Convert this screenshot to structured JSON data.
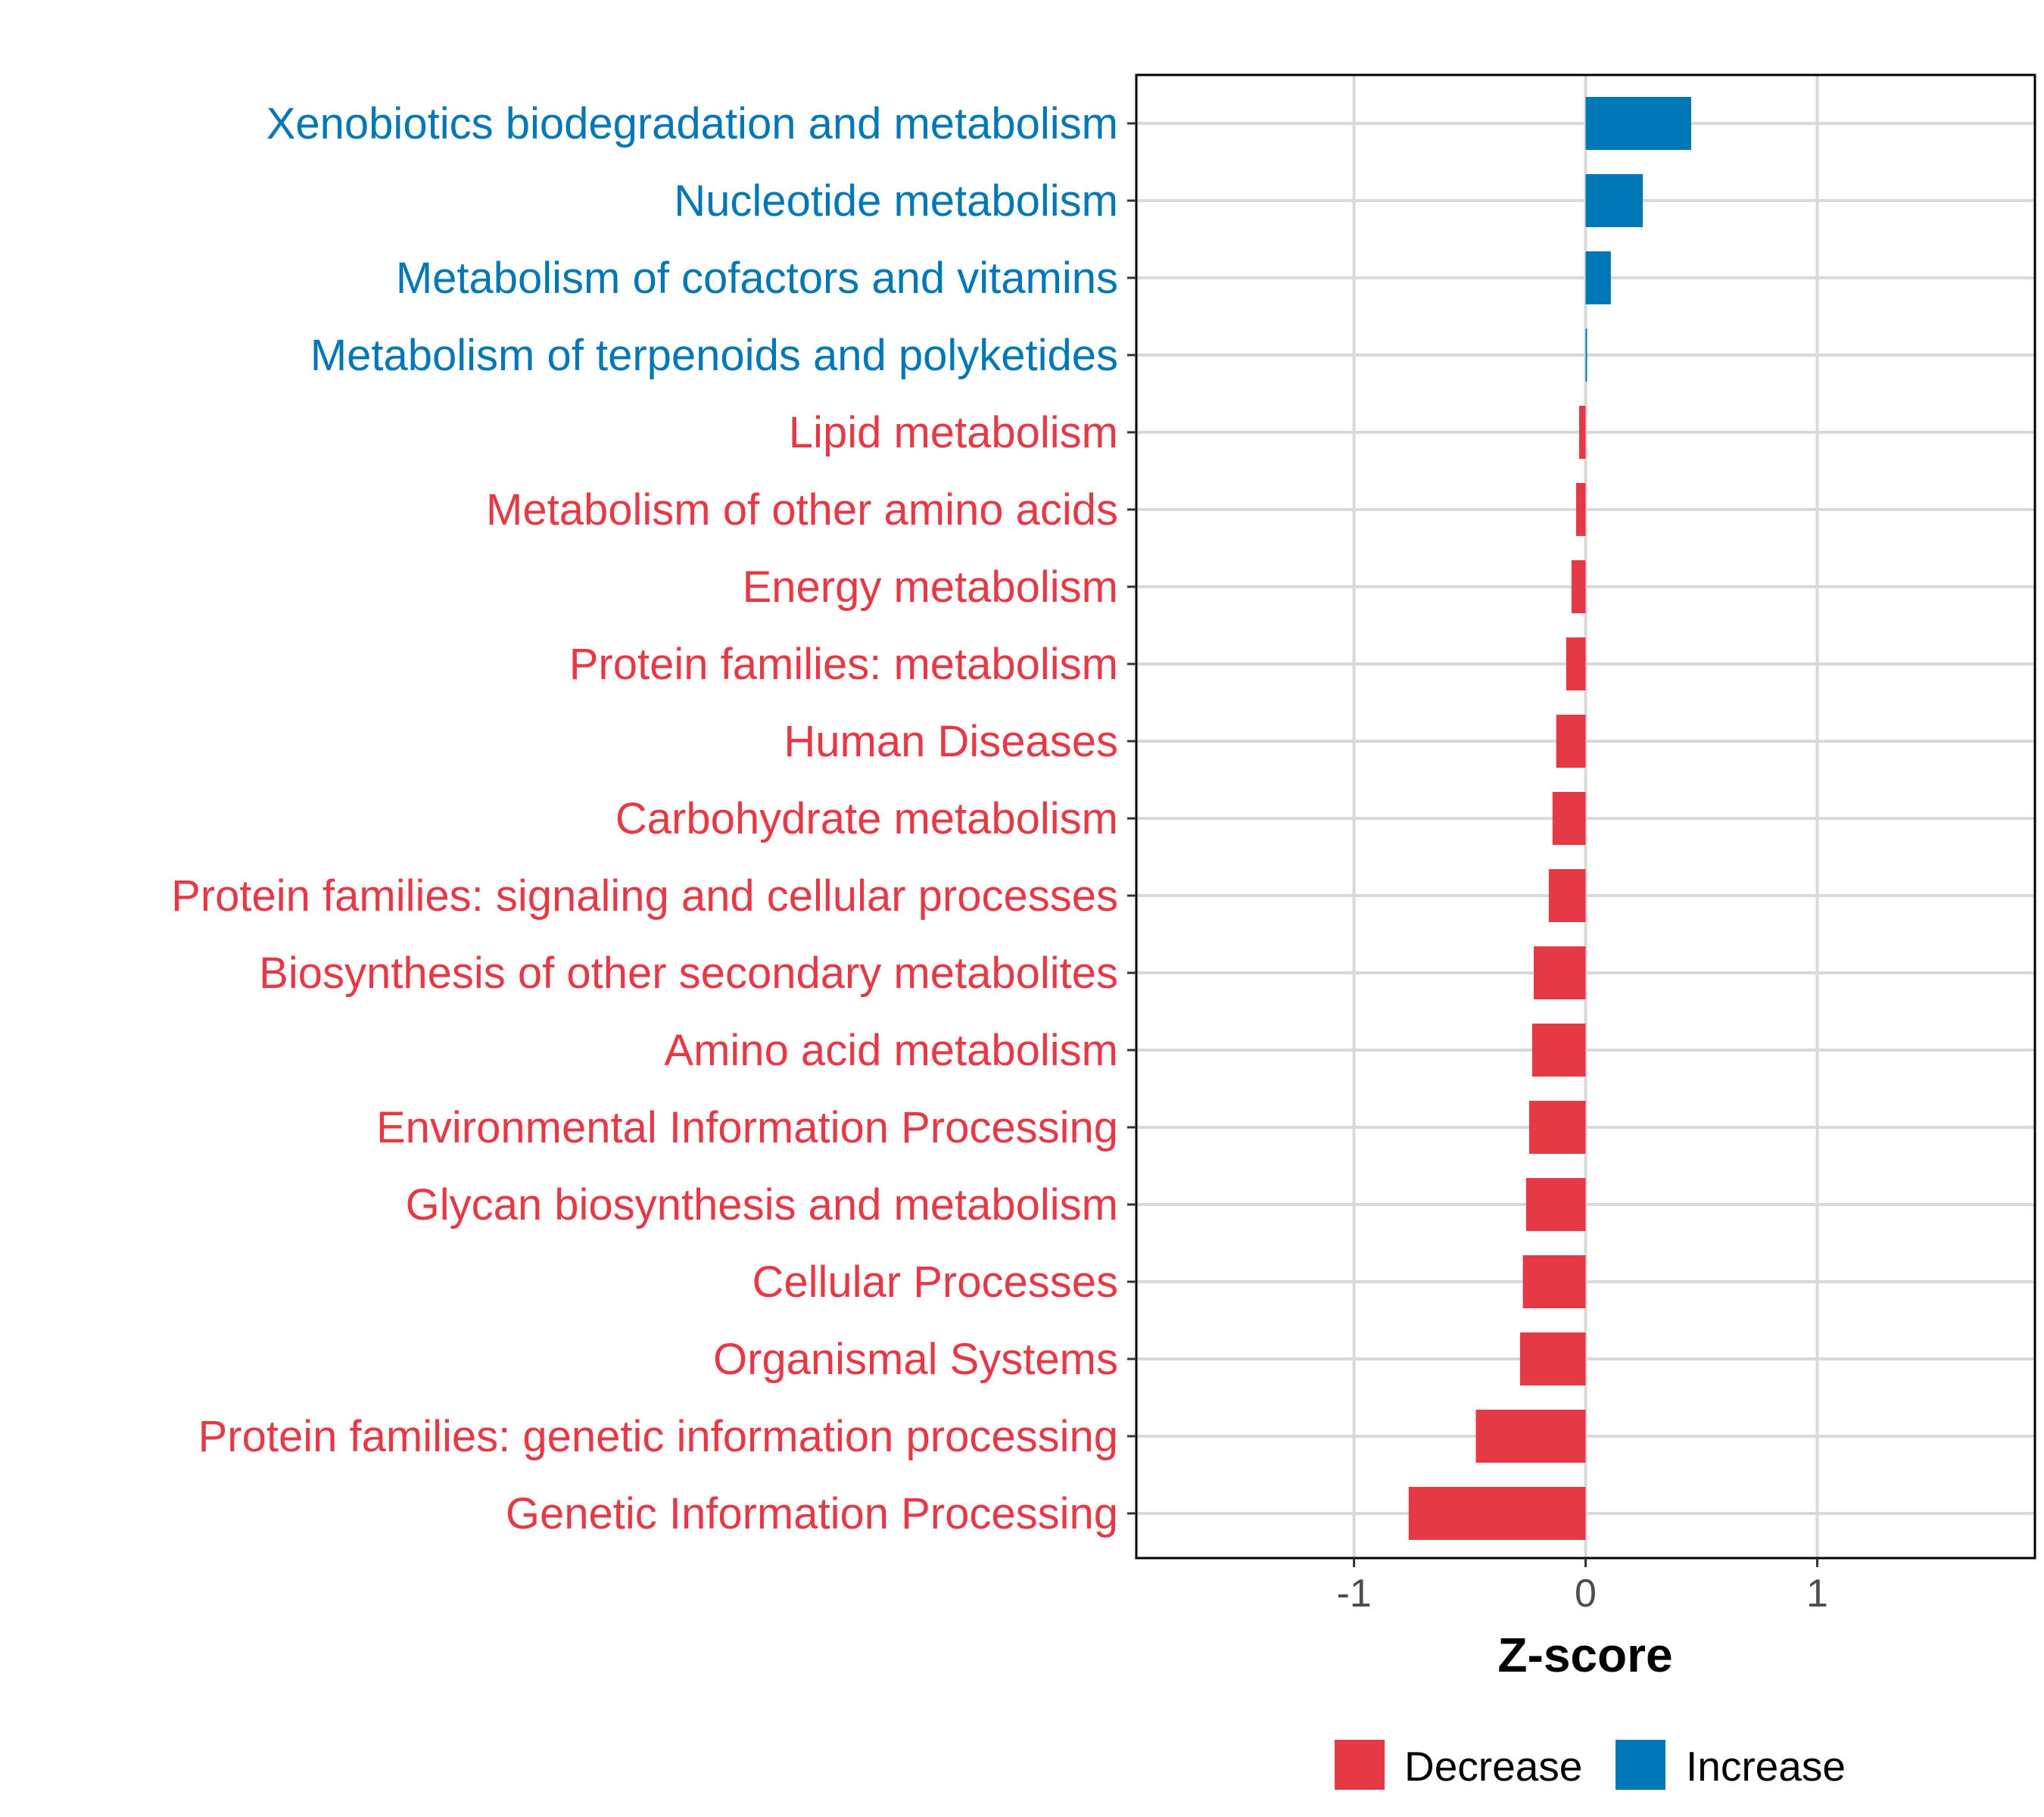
{
  "chart_data": {
    "type": "bar",
    "orientation": "horizontal",
    "title": "",
    "xlabel": "Z-score",
    "ylabel": "",
    "xlim": [
      -1.94,
      1.94
    ],
    "xticks": [
      -1,
      0,
      1
    ],
    "xtick_labels": [
      "-1",
      "0",
      "1"
    ],
    "grid": true,
    "legend_position": "bottom",
    "legend": [
      {
        "label": "Decrease",
        "color": "#E63946"
      },
      {
        "label": "Increase",
        "color": "#0077B6"
      }
    ],
    "categories": [
      "Xenobiotics biodegradation and metabolism",
      "Nucleotide metabolism",
      "Metabolism of cofactors and vitamins",
      "Metabolism of terpenoids and polyketides",
      "Lipid metabolism",
      "Metabolism of other amino acids",
      "Energy metabolism",
      "Protein families: metabolism",
      "Human Diseases",
      "Carbohydrate metabolism",
      "Protein families: signaling and cellular processes",
      "Biosynthesis of other secondary metabolites",
      "Amino acid metabolism",
      "Environmental Information Processing",
      "Glycan biosynthesis and metabolism",
      "Cellular Processes",
      "Organismal Systems",
      "Protein families: genetic information processing",
      "Genetic Information Processing"
    ],
    "values": [
      0.456,
      0.247,
      0.109,
      0.003,
      -0.028,
      -0.041,
      -0.061,
      -0.084,
      -0.127,
      -0.143,
      -0.159,
      -0.224,
      -0.231,
      -0.244,
      -0.257,
      -0.271,
      -0.283,
      -0.474,
      -0.764
    ]
  }
}
